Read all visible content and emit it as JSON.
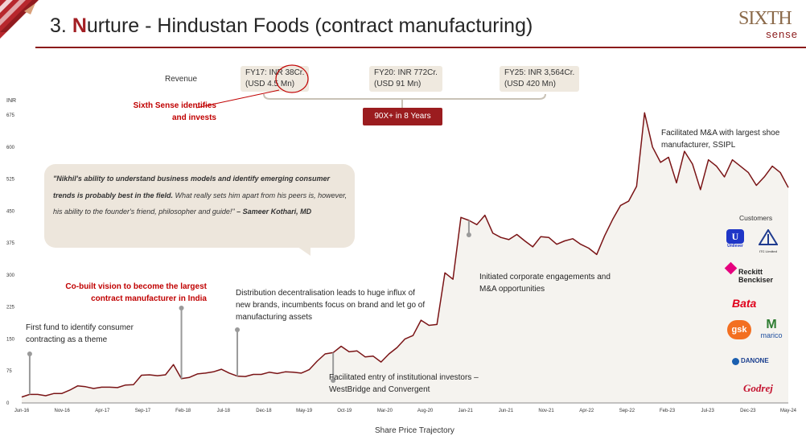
{
  "page": {
    "title_number": "3.",
    "title_highlight": "N",
    "title_rest": "urture - Hindustan Foods (contract manufacturing)"
  },
  "brand": {
    "name_top": "SIXTH",
    "name_bottom": "sense"
  },
  "colors": {
    "accent": "#a31f24",
    "line": "#7a1416",
    "fill": "#f5f3ef",
    "badge": "#9b1c1f",
    "highlight_text": "#c00000"
  },
  "revenue": {
    "label": "Revenue",
    "milestones": [
      {
        "line1": "FY17: INR 38Cr.",
        "line2": "(USD 4.5 Mn)"
      },
      {
        "line1": "FY20: INR 772Cr.",
        "line2": "(USD 91 Mn)"
      },
      {
        "line1": "FY25: INR 3,564Cr.",
        "line2": "(USD 420 Mn)"
      }
    ],
    "growth_badge": "90X+ in 8 Years"
  },
  "invest_note": {
    "line1": "Sixth Sense identifies",
    "line2": "and invests"
  },
  "quote": {
    "bold_part": "\"Nikhil's ability to understand business models and identify emerging consumer trends is probably best in the field.",
    "normal_part": " What really sets him apart from his peers is, however, his ability to the founder's friend, philosopher and guide!\"",
    "author": " – Sameer Kothari, MD"
  },
  "annotations": {
    "first_fund": {
      "line1": "First fund to identify consumer",
      "line2": "contracting as a theme"
    },
    "cobuilt": {
      "line1": "Co-built vision to become the largest",
      "line2": "contract manufacturer in India"
    },
    "distribution": {
      "line1": "Distribution decentralisation leads to huge influx of",
      "line2": "new brands, incumbents focus on brand and let go of",
      "line3": "manufacturing assets"
    },
    "institutional": {
      "line1": "Facilitated entry of institutional investors –",
      "line2": "WestBridge and Convergent"
    },
    "corporate": {
      "line1": "Initiated corporate engagements and",
      "line2": "M&A opportunities"
    },
    "ssipl": {
      "line1": "Facilitated M&A with largest shoe",
      "line2": "manufacturer, SSIPL"
    }
  },
  "customers": {
    "label": "Customers",
    "logos": [
      {
        "name": "Unilever",
        "icon": "unilever-logo"
      },
      {
        "name": "ITC Limited",
        "icon": "itc-logo"
      },
      {
        "name_line1": "Reckitt",
        "name_line2": "Benckiser",
        "icon": "reckitt-logo"
      },
      {
        "name": "Bata",
        "icon": "bata-logo"
      },
      {
        "name": "gsk",
        "icon": "gsk-logo"
      },
      {
        "name": "marico",
        "icon": "marico-logo"
      },
      {
        "name": "DANONE",
        "icon": "danone-logo"
      },
      {
        "name": "Godrej",
        "icon": "godrej-logo"
      }
    ]
  },
  "chart_data": {
    "type": "area",
    "title": "",
    "xlabel": "Share Price Trajectory",
    "ylabel": "INR",
    "ylim": [
      0,
      675
    ],
    "yticks": [
      0,
      75,
      150,
      225,
      300,
      375,
      450,
      525,
      600,
      675
    ],
    "xticks": [
      "Jun-16",
      "Nov-16",
      "Apr-17",
      "Sep-17",
      "Feb-18",
      "Jul-18",
      "Dec-18",
      "May-19",
      "Oct-19",
      "Mar-20",
      "Aug-20",
      "Jan-21",
      "Jun-21",
      "Nov-21",
      "Apr-22",
      "Sep-22",
      "Feb-23",
      "Jul-23",
      "Dec-23",
      "May-24"
    ],
    "grid": false,
    "series": [
      {
        "x": [
          0,
          1,
          2,
          3,
          4,
          5,
          6,
          7,
          8,
          9,
          10,
          11,
          12,
          13,
          14,
          15,
          16,
          17,
          18,
          19,
          20,
          21,
          22,
          23,
          24,
          25,
          26,
          27,
          28,
          29,
          30,
          31,
          32,
          33,
          34,
          35,
          36,
          37,
          38,
          39,
          40,
          41,
          42,
          43,
          44,
          45,
          46,
          47,
          48,
          49,
          50,
          51,
          52,
          53,
          54,
          55,
          56,
          57,
          58,
          59,
          60,
          61,
          62,
          63,
          64,
          65,
          66,
          67,
          68,
          69,
          70,
          71,
          72,
          73,
          74,
          75,
          76,
          77,
          78,
          79,
          80,
          81,
          82,
          83,
          84,
          85,
          86,
          87,
          88,
          89,
          90,
          91,
          92,
          93,
          94,
          95,
          96
        ],
        "y": [
          14,
          20,
          20,
          17,
          22,
          22,
          30,
          40,
          38,
          34,
          37,
          37,
          36,
          42,
          43,
          65,
          66,
          64,
          66,
          90,
          57,
          60,
          68,
          70,
          73,
          79,
          70,
          63,
          62,
          67,
          67,
          72,
          69,
          73,
          72,
          70,
          78,
          98,
          115,
          118,
          133,
          120,
          122,
          108,
          110,
          96,
          115,
          130,
          150,
          158,
          194,
          182,
          184,
          305,
          290,
          435,
          428,
          418,
          440,
          398,
          388,
          383,
          395,
          380,
          366,
          390,
          388,
          372,
          380,
          385,
          372,
          363,
          348,
          392,
          430,
          463,
          473,
          508,
          680,
          600,
          564,
          576,
          516,
          590,
          560,
          500,
          570,
          555,
          530,
          570,
          555,
          540,
          510,
          530,
          555,
          540,
          505
        ]
      }
    ]
  }
}
